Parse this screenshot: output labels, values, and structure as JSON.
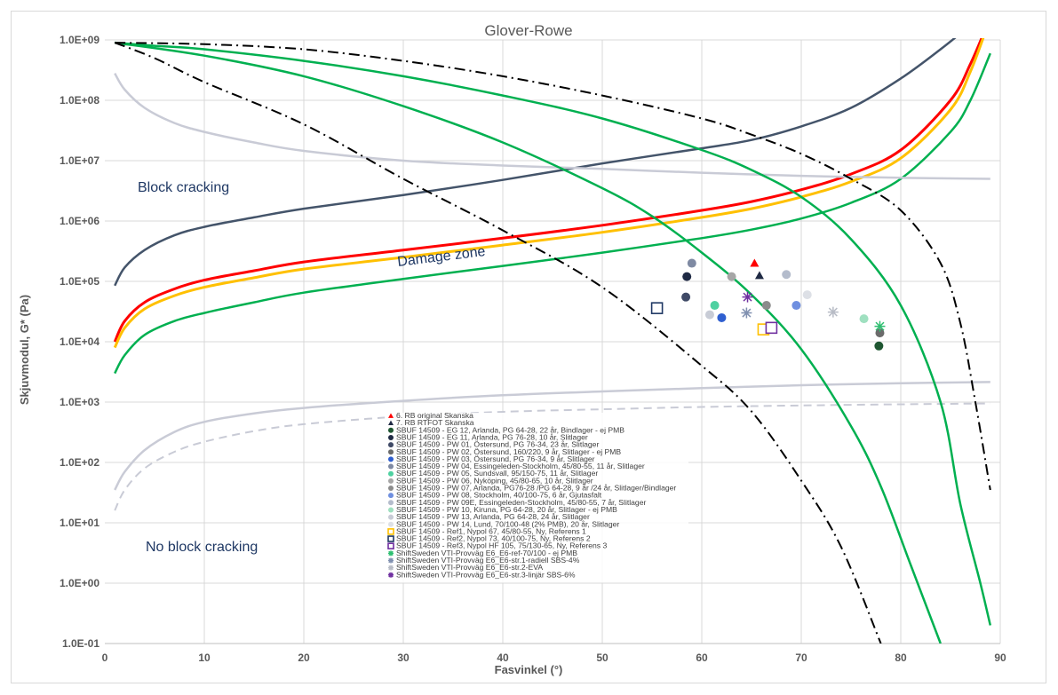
{
  "chart_data": {
    "type": "scatter",
    "title": "Glover-Rowe",
    "xlabel": "Fasvinkel (°)",
    "ylabel": "Skjuvmodul, G* (Pa)",
    "xlim": [
      0,
      90
    ],
    "ylim_log10": [
      -1,
      9
    ],
    "x_ticks": [
      "0",
      "10",
      "20",
      "30",
      "40",
      "50",
      "60",
      "70",
      "80",
      "90"
    ],
    "y_ticks": [
      "1.0E-01",
      "1.0E+00",
      "1.0E+01",
      "1.0E+02",
      "1.0E+03",
      "1.0E+04",
      "1.0E+05",
      "1.0E+06",
      "1.0E+07",
      "1.0E+08",
      "1.0E+09"
    ],
    "grid": true,
    "legend_position": "bottom-center",
    "annotations": [
      "Block cracking",
      "Damage zone",
      "No block cracking"
    ],
    "curves": [
      {
        "style": "red",
        "points": [
          [
            1,
            10000
          ],
          [
            2,
            22000
          ],
          [
            4,
            45000
          ],
          [
            7,
            75000
          ],
          [
            10,
            105000
          ],
          [
            15,
            150000
          ],
          [
            20,
            210000
          ],
          [
            30,
            330000
          ],
          [
            40,
            520000
          ],
          [
            50,
            850000
          ],
          [
            60,
            1500000
          ],
          [
            65,
            2100000
          ],
          [
            70,
            3300000
          ],
          [
            75,
            6000000
          ],
          [
            80,
            15000000
          ],
          [
            85,
            100000000
          ],
          [
            87,
            400000000
          ],
          [
            88.5,
            1500000000
          ]
        ]
      },
      {
        "style": "orange",
        "points": [
          [
            1,
            8000
          ],
          [
            2,
            17000
          ],
          [
            4,
            35000
          ],
          [
            7,
            58000
          ],
          [
            10,
            80000
          ],
          [
            15,
            115000
          ],
          [
            20,
            160000
          ],
          [
            30,
            250000
          ],
          [
            40,
            400000
          ],
          [
            50,
            650000
          ],
          [
            60,
            1150000
          ],
          [
            65,
            1600000
          ],
          [
            70,
            2500000
          ],
          [
            75,
            4500000
          ],
          [
            80,
            11000000
          ],
          [
            85,
            70000000
          ],
          [
            87,
            300000000
          ],
          [
            88.6,
            1500000000
          ]
        ]
      },
      {
        "style": "green",
        "points": [
          [
            1,
            3000
          ],
          [
            2,
            6000
          ],
          [
            4,
            13000
          ],
          [
            7,
            22000
          ],
          [
            10,
            30000
          ],
          [
            15,
            45000
          ],
          [
            20,
            65000
          ],
          [
            30,
            110000
          ],
          [
            40,
            180000
          ],
          [
            50,
            300000
          ],
          [
            60,
            520000
          ],
          [
            65,
            720000
          ],
          [
            70,
            1100000
          ],
          [
            75,
            2000000
          ],
          [
            80,
            5000000
          ],
          [
            85,
            30000000
          ],
          [
            87,
            100000000
          ],
          [
            89,
            600000000
          ]
        ]
      },
      {
        "style": "navy",
        "points": [
          [
            1,
            85000
          ],
          [
            2,
            170000
          ],
          [
            4,
            330000
          ],
          [
            7,
            580000
          ],
          [
            10,
            800000
          ],
          [
            15,
            1150000
          ],
          [
            20,
            1600000
          ],
          [
            30,
            2700000
          ],
          [
            40,
            4800000
          ],
          [
            50,
            9000000
          ],
          [
            60,
            16000000
          ],
          [
            65,
            22000000
          ],
          [
            70,
            37000000
          ],
          [
            75,
            75000000
          ],
          [
            80,
            230000000
          ],
          [
            84,
            700000000
          ],
          [
            86.5,
            1500000000
          ]
        ]
      },
      {
        "style": "lightgray",
        "points": [
          [
            1,
            280000000
          ],
          [
            2,
            150000000
          ],
          [
            4,
            75000000
          ],
          [
            7,
            42000000
          ],
          [
            10,
            30000000
          ],
          [
            15,
            20000000
          ],
          [
            20,
            14500000
          ],
          [
            30,
            10000000
          ],
          [
            40,
            8300000
          ],
          [
            50,
            7300000
          ],
          [
            60,
            6300000
          ],
          [
            70,
            5600000
          ],
          [
            80,
            5200000
          ],
          [
            89,
            5000000
          ]
        ]
      },
      {
        "style": "lightgray",
        "points": [
          [
            1,
            35
          ],
          [
            2,
            70
          ],
          [
            4,
            160
          ],
          [
            7,
            320
          ],
          [
            10,
            470
          ],
          [
            15,
            650
          ],
          [
            20,
            800
          ],
          [
            30,
            1050
          ],
          [
            40,
            1300
          ],
          [
            50,
            1500
          ],
          [
            60,
            1700
          ],
          [
            70,
            1900
          ],
          [
            80,
            2050
          ],
          [
            89,
            2150
          ]
        ]
      },
      {
        "style": "lightgray-dash",
        "points": [
          [
            1,
            16
          ],
          [
            2,
            35
          ],
          [
            4,
            80
          ],
          [
            7,
            150
          ],
          [
            10,
            220
          ],
          [
            15,
            330
          ],
          [
            20,
            430
          ],
          [
            30,
            580
          ],
          [
            40,
            690
          ],
          [
            50,
            760
          ],
          [
            60,
            830
          ],
          [
            70,
            880
          ],
          [
            80,
            920
          ],
          [
            89,
            950
          ]
        ]
      },
      {
        "style": "green",
        "points": [
          [
            1,
            900000000
          ],
          [
            5,
            800000000
          ],
          [
            10,
            700000000
          ],
          [
            20,
            450000000
          ],
          [
            30,
            250000000
          ],
          [
            40,
            120000000
          ],
          [
            50,
            50000000
          ],
          [
            60,
            15000000
          ],
          [
            65,
            7000000
          ],
          [
            70,
            2500000
          ],
          [
            75,
            500000
          ],
          [
            80,
            40000
          ],
          [
            84,
            1000
          ],
          [
            86,
            20
          ],
          [
            88,
            1
          ],
          [
            89,
            0.2
          ]
        ]
      },
      {
        "style": "green",
        "points": [
          [
            1,
            900000000
          ],
          [
            10,
            550000000
          ],
          [
            20,
            250000000
          ],
          [
            30,
            80000000
          ],
          [
            40,
            20000000
          ],
          [
            50,
            3500000
          ],
          [
            55,
            1200000
          ],
          [
            60,
            300000
          ],
          [
            65,
            60000
          ],
          [
            70,
            7500
          ],
          [
            75,
            400
          ],
          [
            78,
            40
          ],
          [
            81,
            2
          ],
          [
            84,
            0.1
          ]
        ]
      },
      {
        "style": "dashdot",
        "points": [
          [
            1,
            900000000
          ],
          [
            10,
            850000000
          ],
          [
            20,
            700000000
          ],
          [
            30,
            450000000
          ],
          [
            40,
            250000000
          ],
          [
            50,
            120000000
          ],
          [
            60,
            50000000
          ],
          [
            65,
            27000000
          ],
          [
            70,
            13000000
          ],
          [
            75,
            5000000
          ],
          [
            80,
            1500000
          ],
          [
            84,
            200000
          ],
          [
            86,
            20000
          ],
          [
            87.5,
            1000
          ],
          [
            89,
            35
          ]
        ]
      },
      {
        "style": "dashdot",
        "points": [
          [
            1,
            900000000
          ],
          [
            5,
            500000000
          ],
          [
            10,
            200000000
          ],
          [
            20,
            40000000
          ],
          [
            30,
            5000000
          ],
          [
            40,
            700000
          ],
          [
            50,
            80000
          ],
          [
            60,
            4000
          ],
          [
            65,
            700
          ],
          [
            70,
            50
          ],
          [
            74,
            4
          ],
          [
            78,
            0.1
          ]
        ]
      }
    ],
    "series": [
      {
        "name": "6. RB original Skanska",
        "color": "#ff0000",
        "marker": "triangle",
        "x": [
          65.3
        ],
        "y": [
          200000
        ]
      },
      {
        "name": "7. RB RTFOT Skanska",
        "color": "#1f2a44",
        "marker": "triangle",
        "x": [
          65.8
        ],
        "y": [
          125000
        ]
      },
      {
        "name": "SBUF 14509 - EG 12, Arlanda, PG 64-28, 22 år, Bindlager - ej PMB",
        "color": "#1e5631",
        "marker": "circle",
        "x": [
          77.8
        ],
        "y": [
          8500
        ]
      },
      {
        "name": "SBUF 14509 - EG 11, Arlanda, PG 76-28, 10 år, Slitlager",
        "color": "#1f2a44",
        "marker": "circle",
        "x": [
          58.5
        ],
        "y": [
          120000
        ]
      },
      {
        "name": "SBUF 14509 - PW 01, Östersund, PG 76-34, 23 år, Slitlager",
        "color": "#3f4a66",
        "marker": "circle",
        "x": [
          58.4
        ],
        "y": [
          55000
        ]
      },
      {
        "name": "SBUF 14509 - PW 02, Östersund, 160/220, 9 år, Slitlager - ej PMB",
        "color": "#6b6b6b",
        "marker": "circle",
        "x": [
          77.9
        ],
        "y": [
          14000
        ]
      },
      {
        "name": "SBUF 14509 - PW 03, Östersund, PG 76-34, 9 år, Slitlager",
        "color": "#2f5fd0",
        "marker": "circle",
        "x": [
          62
        ],
        "y": [
          25000
        ]
      },
      {
        "name": "SBUF 14509 - PW 04, Essingeleden-Stockholm, 45/80-55, 11 år, Slitlager",
        "color": "#7f8aa3",
        "marker": "circle",
        "x": [
          59
        ],
        "y": [
          200000
        ]
      },
      {
        "name": "SBUF 14509 - PW 05, Sundsvall, 95/150-75, 11 år, Slitlager",
        "color": "#4fd1a1",
        "marker": "circle",
        "x": [
          61.3
        ],
        "y": [
          40000
        ]
      },
      {
        "name": "SBUF 14509 - PW 06, Nyköping, 45/80-65, 10 år, Slitlager",
        "color": "#a6a6a6",
        "marker": "circle",
        "x": [
          63
        ],
        "y": [
          120000
        ]
      },
      {
        "name": "SBUF 14509 - PW 07, Arlanda, PG76-28 /PG 64-28, 9 år /24 år, Slitlager/Bindlager",
        "color": "#8c8c8c",
        "marker": "circle",
        "x": [
          66.5
        ],
        "y": [
          40000
        ]
      },
      {
        "name": "SBUF 14509 - PW 08, Stockholm, 40/100-75, 6 år, Gjutasfalt",
        "color": "#6f8fe0",
        "marker": "circle",
        "x": [
          69.5
        ],
        "y": [
          40000
        ]
      },
      {
        "name": "SBUF 14509 - PW 09E, Essingeleden-Stockholm, 45/80-55, 7 år, Slitlager",
        "color": "#b4bccc",
        "marker": "circle",
        "x": [
          68.5
        ],
        "y": [
          130000
        ]
      },
      {
        "name": "SBUF 14509 - PW 10, Kiruna, PG 64-28, 20 år, Slitlager - ej PMB",
        "color": "#9fe0c0",
        "marker": "circle",
        "x": [
          76.3
        ],
        "y": [
          24000
        ]
      },
      {
        "name": "SBUF 14509 - PW 13, Arlanda, PG 64-28, 24 år, Slitlager",
        "color": "#c8ccd6",
        "marker": "circle",
        "x": [
          60.8
        ],
        "y": [
          28000
        ]
      },
      {
        "name": "SBUF 14509 - PW 14, Lund, 70/100-48 (2% PMB), 20 år, Slitlager",
        "color": "#dde0e6",
        "marker": "circle",
        "x": [
          70.6
        ],
        "y": [
          60000
        ]
      },
      {
        "name": "SBUF 14509 - Ref1, Nypol 67, 45/80-55, Ny, Referens 1",
        "color": "#ffc000",
        "marker": "square",
        "x": [
          66.2
        ],
        "y": [
          16000
        ]
      },
      {
        "name": "SBUF 14509 - Ref2, Nypol 73, 40/100-75, Ny, Referens 2",
        "color": "#1f3864",
        "marker": "square",
        "x": [
          55.5
        ],
        "y": [
          36000
        ]
      },
      {
        "name": "SBUF 14509 - Ref3, Nypol HF 105, 75/130-65, Ny, Referens 3",
        "color": "#7030a0",
        "marker": "square",
        "x": [
          67
        ],
        "y": [
          17000
        ]
      },
      {
        "name": "ShiftSweden VTI-Provväg E6_E6-ref-70/100 - ej PMB",
        "color": "#2fbf71",
        "marker": "star",
        "x": [
          77.9
        ],
        "y": [
          18000
        ]
      },
      {
        "name": "ShiftSweden VTI-Provväg E6_E6-str.1-radiell SBS-4%",
        "color": "#8090b0",
        "marker": "star",
        "x": [
          64.5
        ],
        "y": [
          30000
        ]
      },
      {
        "name": "ShiftSweden VTI-Provväg E6_E6-str.2-EVA",
        "color": "#b8bcc6",
        "marker": "star",
        "x": [
          73.2
        ],
        "y": [
          31000
        ]
      },
      {
        "name": "ShiftSweden VTI-Provväg E6_E6-str.3-linjär SBS-6%",
        "color": "#7030a0",
        "marker": "star",
        "x": [
          64.6
        ],
        "y": [
          55000
        ]
      }
    ]
  }
}
